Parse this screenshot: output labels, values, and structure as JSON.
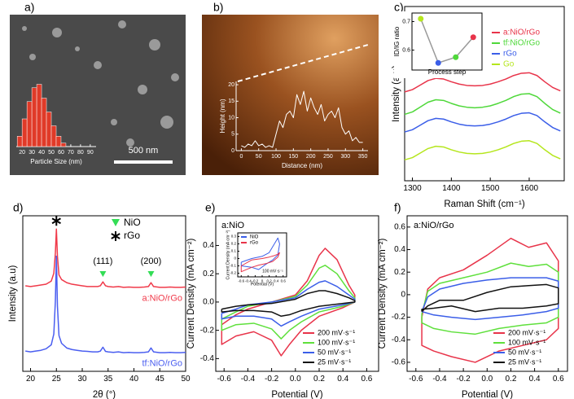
{
  "chart_data": [
    {
      "type": "histogram",
      "panel": "a)",
      "xlabel": "Particle Size (nm)",
      "annotation": "500 nm",
      "bins": [
        15,
        20,
        25,
        30,
        35,
        40,
        45,
        50,
        55,
        60,
        65
      ],
      "values": [
        15,
        40,
        65,
        85,
        90,
        70,
        50,
        30,
        15,
        5
      ],
      "color": "#e03a28",
      "xlim": [
        14,
        96
      ],
      "ylim": [
        0,
        100
      ],
      "xticks": [
        20,
        30,
        40,
        50,
        60,
        70,
        80,
        90
      ]
    },
    {
      "type": "line",
      "panel": "b)",
      "xlabel": "Distance (nm)",
      "ylabel": "Height (nm)",
      "x": [
        0,
        10,
        20,
        30,
        40,
        50,
        60,
        70,
        80,
        90,
        100,
        110,
        120,
        130,
        140,
        150,
        160,
        170,
        180,
        190,
        200,
        210,
        220,
        230,
        240,
        250,
        260,
        270,
        280,
        290,
        300,
        310,
        320,
        330,
        340,
        350
      ],
      "values": [
        1.5,
        1,
        2,
        1.5,
        3,
        1.5,
        2,
        1,
        1.5,
        1,
        5,
        9,
        7,
        11,
        12,
        10,
        17,
        14,
        18,
        12,
        16,
        13,
        11,
        14,
        9,
        11,
        12,
        10,
        13,
        7,
        5,
        6,
        3,
        4,
        2.5,
        2.5
      ],
      "color": "#ffffff",
      "xlim": [
        -15,
        365
      ],
      "ylim": [
        0,
        21
      ],
      "xticks": [
        0,
        50,
        100,
        150,
        200,
        250,
        300,
        350
      ],
      "yticks": [
        0,
        5,
        10,
        15,
        20
      ]
    },
    {
      "type": "line",
      "panel": "c)",
      "xlabel": "Raman Shift (cm⁻¹)",
      "ylabel": "Intensity (a.u)",
      "legend": "upper right",
      "x": [
        1280,
        1300,
        1320,
        1340,
        1360,
        1380,
        1400,
        1420,
        1440,
        1460,
        1480,
        1500,
        1520,
        1540,
        1560,
        1580,
        1600,
        1620,
        1640,
        1660,
        1680
      ],
      "series": [
        {
          "name": "a:NiO/rGo",
          "color": "#e8344a",
          "values": [
            5.1,
            5.23,
            5.49,
            5.75,
            5.88,
            5.84,
            5.68,
            5.55,
            5.47,
            5.45,
            5.47,
            5.55,
            5.68,
            5.84,
            6.04,
            6.17,
            6.2,
            6.04,
            5.68,
            5.36,
            5.16
          ]
        },
        {
          "name": "tf:NiO/rGo",
          "color": "#4fd83a",
          "values": [
            3.81,
            3.95,
            4.23,
            4.51,
            4.65,
            4.61,
            4.44,
            4.3,
            4.22,
            4.19,
            4.22,
            4.3,
            4.44,
            4.61,
            4.83,
            4.97,
            5.0,
            4.83,
            4.44,
            4.09,
            3.88
          ]
        },
        {
          "name": "rGo",
          "color": "#3b5ee8",
          "values": [
            2.8,
            2.93,
            3.19,
            3.45,
            3.58,
            3.54,
            3.38,
            3.25,
            3.17,
            3.15,
            3.17,
            3.25,
            3.38,
            3.54,
            3.74,
            3.87,
            3.9,
            3.74,
            3.38,
            3.06,
            2.86
          ]
        },
        {
          "name": "Go",
          "color": "#b5e61d",
          "values": [
            1.2,
            1.33,
            1.59,
            1.85,
            1.98,
            1.94,
            1.78,
            1.65,
            1.57,
            1.55,
            1.57,
            1.65,
            1.78,
            1.94,
            2.14,
            2.27,
            2.3,
            2.14,
            1.78,
            1.46,
            1.26
          ]
        }
      ],
      "xlim": [
        1280,
        1690
      ],
      "ylim": [
        0,
        10
      ],
      "xticks": [
        1300,
        1400,
        1500,
        1600
      ],
      "inset": {
        "type": "line",
        "xlabel": "Process step",
        "ylabel": "ID/IG ratio",
        "categories": [
          null,
          null,
          null,
          null
        ],
        "values": [
          0.71,
          0.555,
          0.575,
          0.645
        ],
        "colors": [
          "#b5e61d",
          "#3b5ee8",
          "#4fd83a",
          "#e8344a"
        ],
        "line_color": "#999999",
        "ylim": [
          0.53,
          0.73
        ],
        "yticks": [
          0.6,
          0.7
        ]
      }
    },
    {
      "type": "line",
      "panel": "d)",
      "xlabel": "2θ (°)",
      "ylabel": "Intensity (a.u)",
      "legend": "inline",
      "x": [
        19,
        20,
        21,
        22,
        23,
        24,
        24.5,
        24.8,
        25,
        25.2,
        25.5,
        26,
        27,
        28,
        29,
        30,
        31,
        32,
        33,
        33.5,
        34,
        34.5,
        35,
        36,
        37,
        38,
        39,
        40,
        41,
        42,
        42.8,
        43.3,
        43.8,
        45,
        46,
        47,
        48,
        49,
        50
      ],
      "series": [
        {
          "name": "a:NiO/rGo",
          "color": "#f03a4a",
          "values": [
            5.5,
            5.45,
            5.5,
            5.55,
            5.6,
            5.8,
            6.3,
            7.6,
            9.15,
            7.4,
            6.2,
            5.9,
            5.7,
            5.6,
            5.55,
            5.5,
            5.45,
            5.45,
            5.45,
            5.5,
            5.75,
            5.5,
            5.45,
            5.42,
            5.45,
            5.4,
            5.42,
            5.4,
            5.4,
            5.42,
            5.45,
            5.7,
            5.45,
            5.4,
            5.4,
            5.42,
            5.4,
            5.4,
            5.42
          ]
        },
        {
          "name": "tf:NiO/rGo",
          "color": "#4a5ef0",
          "values": [
            1.3,
            1.25,
            1.3,
            1.35,
            1.45,
            1.7,
            2.4,
            4.5,
            7.4,
            4.2,
            2.3,
            1.8,
            1.5,
            1.4,
            1.35,
            1.3,
            1.28,
            1.25,
            1.25,
            1.3,
            1.55,
            1.28,
            1.25,
            1.22,
            1.25,
            1.2,
            1.22,
            1.2,
            1.2,
            1.22,
            1.25,
            1.5,
            1.25,
            1.2,
            1.2,
            1.22,
            1.2,
            1.2,
            1.22
          ]
        }
      ],
      "markers": [
        {
          "label": "NiO",
          "color": "#33dd55",
          "symbol": "triangle"
        },
        {
          "label": "rGo",
          "color": "#000000",
          "symbol": "star"
        }
      ],
      "peaks": [
        {
          "x": 34,
          "label": "(111)"
        },
        {
          "x": 43.3,
          "label": "(200)"
        }
      ],
      "xlim": [
        18.5,
        50
      ],
      "ylim": [
        0,
        10
      ],
      "xticks": [
        20,
        25,
        30,
        35,
        40,
        45,
        50
      ]
    },
    {
      "type": "line",
      "panel": "e)",
      "xlabel": "Potential (V)",
      "ylabel": "Current Density (mA cm⁻²)",
      "annotation": "a:NiO",
      "legend": "lower right",
      "x": [
        -0.62,
        -0.5,
        -0.4,
        -0.2,
        0,
        0.1,
        0.2,
        0.25,
        0.35,
        0.45,
        0.5,
        0.5,
        0.4,
        0.2,
        0.05,
        -0.05,
        -0.12,
        -0.2,
        -0.35,
        -0.5,
        -0.62,
        -0.62
      ],
      "series": [
        {
          "name": "200 mV·s⁻¹",
          "color": "#e8344a",
          "values": [
            -0.16,
            -0.09,
            -0.05,
            0.0,
            0.05,
            0.15,
            0.33,
            0.38,
            0.3,
            0.12,
            0.05,
            0.0,
            -0.04,
            -0.1,
            -0.2,
            -0.3,
            -0.38,
            -0.27,
            -0.21,
            -0.24,
            -0.3,
            -0.16
          ]
        },
        {
          "name": "100 mV·s⁻¹",
          "color": "#5fe03c",
          "values": [
            -0.12,
            -0.07,
            -0.03,
            0.0,
            0.04,
            0.12,
            0.24,
            0.26,
            0.2,
            0.08,
            0.03,
            0.0,
            -0.03,
            -0.07,
            -0.14,
            -0.2,
            -0.26,
            -0.19,
            -0.15,
            -0.16,
            -0.2,
            -0.12
          ]
        },
        {
          "name": "50 mV·s⁻¹",
          "color": "#3b5ee8",
          "values": [
            -0.08,
            -0.05,
            -0.02,
            0.0,
            0.03,
            0.09,
            0.14,
            0.15,
            0.11,
            0.05,
            0.02,
            0.0,
            -0.02,
            -0.05,
            -0.1,
            -0.14,
            -0.17,
            -0.12,
            -0.1,
            -0.1,
            -0.12,
            -0.08
          ]
        },
        {
          "name": "25 mV·s⁻¹",
          "color": "#111111",
          "values": [
            -0.05,
            -0.03,
            -0.02,
            -0.01,
            0.02,
            0.06,
            0.08,
            0.08,
            0.06,
            0.03,
            0.01,
            0.0,
            -0.01,
            -0.03,
            -0.06,
            -0.09,
            -0.1,
            -0.07,
            -0.06,
            -0.06,
            -0.07,
            -0.05
          ]
        }
      ],
      "xlim": [
        -0.67,
        0.7
      ],
      "ylim": [
        -0.49,
        0.61
      ],
      "xticks": [
        -0.6,
        -0.4,
        -0.2,
        {
          "value": 0,
          "label": "0.0"
        },
        0.2,
        0.4,
        0.6
      ],
      "yticks": [
        -0.4,
        -0.2,
        {
          "value": 0,
          "label": "0.0"
        },
        0.2,
        0.4
      ],
      "inset": {
        "type": "line",
        "xlabel": "Potential (V)",
        "ylabel": "Current Density (mA cm⁻²)",
        "annotation": "100 mV·s⁻¹",
        "legend": "upper left",
        "x": [
          -0.6,
          -0.3,
          0,
          0.2,
          0.35,
          0.45,
          0.5,
          0.45,
          0.3,
          0.1,
          -0.1,
          -0.3,
          -0.6,
          -0.6
        ],
        "series": [
          {
            "name": "NiO",
            "color": "#3b5ee8",
            "values": [
              -0.05,
              0.0,
              0.03,
              0.08,
              0.2,
              0.28,
              0.2,
              0.05,
              -0.02,
              -0.08,
              -0.15,
              -0.12,
              -0.1,
              -0.05
            ]
          },
          {
            "name": "rGo",
            "color": "#e8344a",
            "values": [
              -0.1,
              -0.02,
              0.0,
              0.02,
              0.04,
              0.06,
              0.08,
              0.02,
              -0.04,
              -0.07,
              -0.09,
              -0.12,
              -0.18,
              -0.1
            ]
          }
        ],
        "xlim": [
          -0.7,
          0.7
        ],
        "ylim": [
          -0.25,
          0.35
        ],
        "xticks": [
          -0.6,
          -0.4,
          -0.2,
          0,
          0.2,
          0.4,
          0.6
        ],
        "yticks": [
          -0.2,
          -0.1,
          0,
          0.1,
          0.2,
          0.3
        ]
      }
    },
    {
      "type": "line",
      "panel": "f)",
      "xlabel": "Potential (V)",
      "ylabel": "Current Density (mA cm⁻²)",
      "annotation": "a:NiO/rGo",
      "legend": "lower right",
      "x": [
        -0.55,
        -0.5,
        -0.4,
        -0.2,
        0,
        0.2,
        0.35,
        0.5,
        0.6,
        0.6,
        0.5,
        0.3,
        0.1,
        -0.1,
        -0.3,
        -0.45,
        -0.55,
        -0.55
      ],
      "series": [
        {
          "name": "200 mV·s⁻¹",
          "color": "#e8344a",
          "values": [
            -0.2,
            0.05,
            0.15,
            0.22,
            0.35,
            0.5,
            0.42,
            0.46,
            0.3,
            -0.3,
            -0.4,
            -0.45,
            -0.5,
            -0.6,
            -0.55,
            -0.5,
            -0.45,
            -0.2
          ]
        },
        {
          "name": "100 mV·s⁻¹",
          "color": "#5fe03c",
          "values": [
            -0.17,
            0.03,
            0.1,
            0.15,
            0.2,
            0.28,
            0.25,
            0.27,
            0.2,
            -0.2,
            -0.25,
            -0.27,
            -0.3,
            -0.35,
            -0.33,
            -0.3,
            -0.25,
            -0.17
          ]
        },
        {
          "name": "50 mV·s⁻¹",
          "color": "#3b5ee8",
          "values": [
            -0.15,
            -0.02,
            0.05,
            0.1,
            0.13,
            0.15,
            0.15,
            0.15,
            0.12,
            -0.12,
            -0.15,
            -0.18,
            -0.2,
            -0.22,
            -0.2,
            -0.18,
            -0.15,
            -0.15
          ]
        },
        {
          "name": "25 mV·s⁻¹",
          "color": "#111111",
          "values": [
            -0.15,
            -0.1,
            -0.05,
            -0.05,
            0.02,
            0.07,
            0.08,
            0.09,
            0.06,
            -0.08,
            -0.1,
            -0.12,
            -0.12,
            -0.15,
            -0.1,
            -0.12,
            -0.13,
            -0.15
          ]
        }
      ],
      "xlim": [
        -0.674,
        0.677
      ],
      "ylim": [
        -0.68,
        0.7
      ],
      "xticks": [
        -0.6,
        -0.4,
        -0.2,
        {
          "value": 0,
          "label": "0.0"
        },
        0.2,
        0.4,
        0.6
      ],
      "yticks": [
        -0.6,
        -0.4,
        -0.2,
        0,
        0.2,
        0.4,
        0.6
      ]
    }
  ]
}
